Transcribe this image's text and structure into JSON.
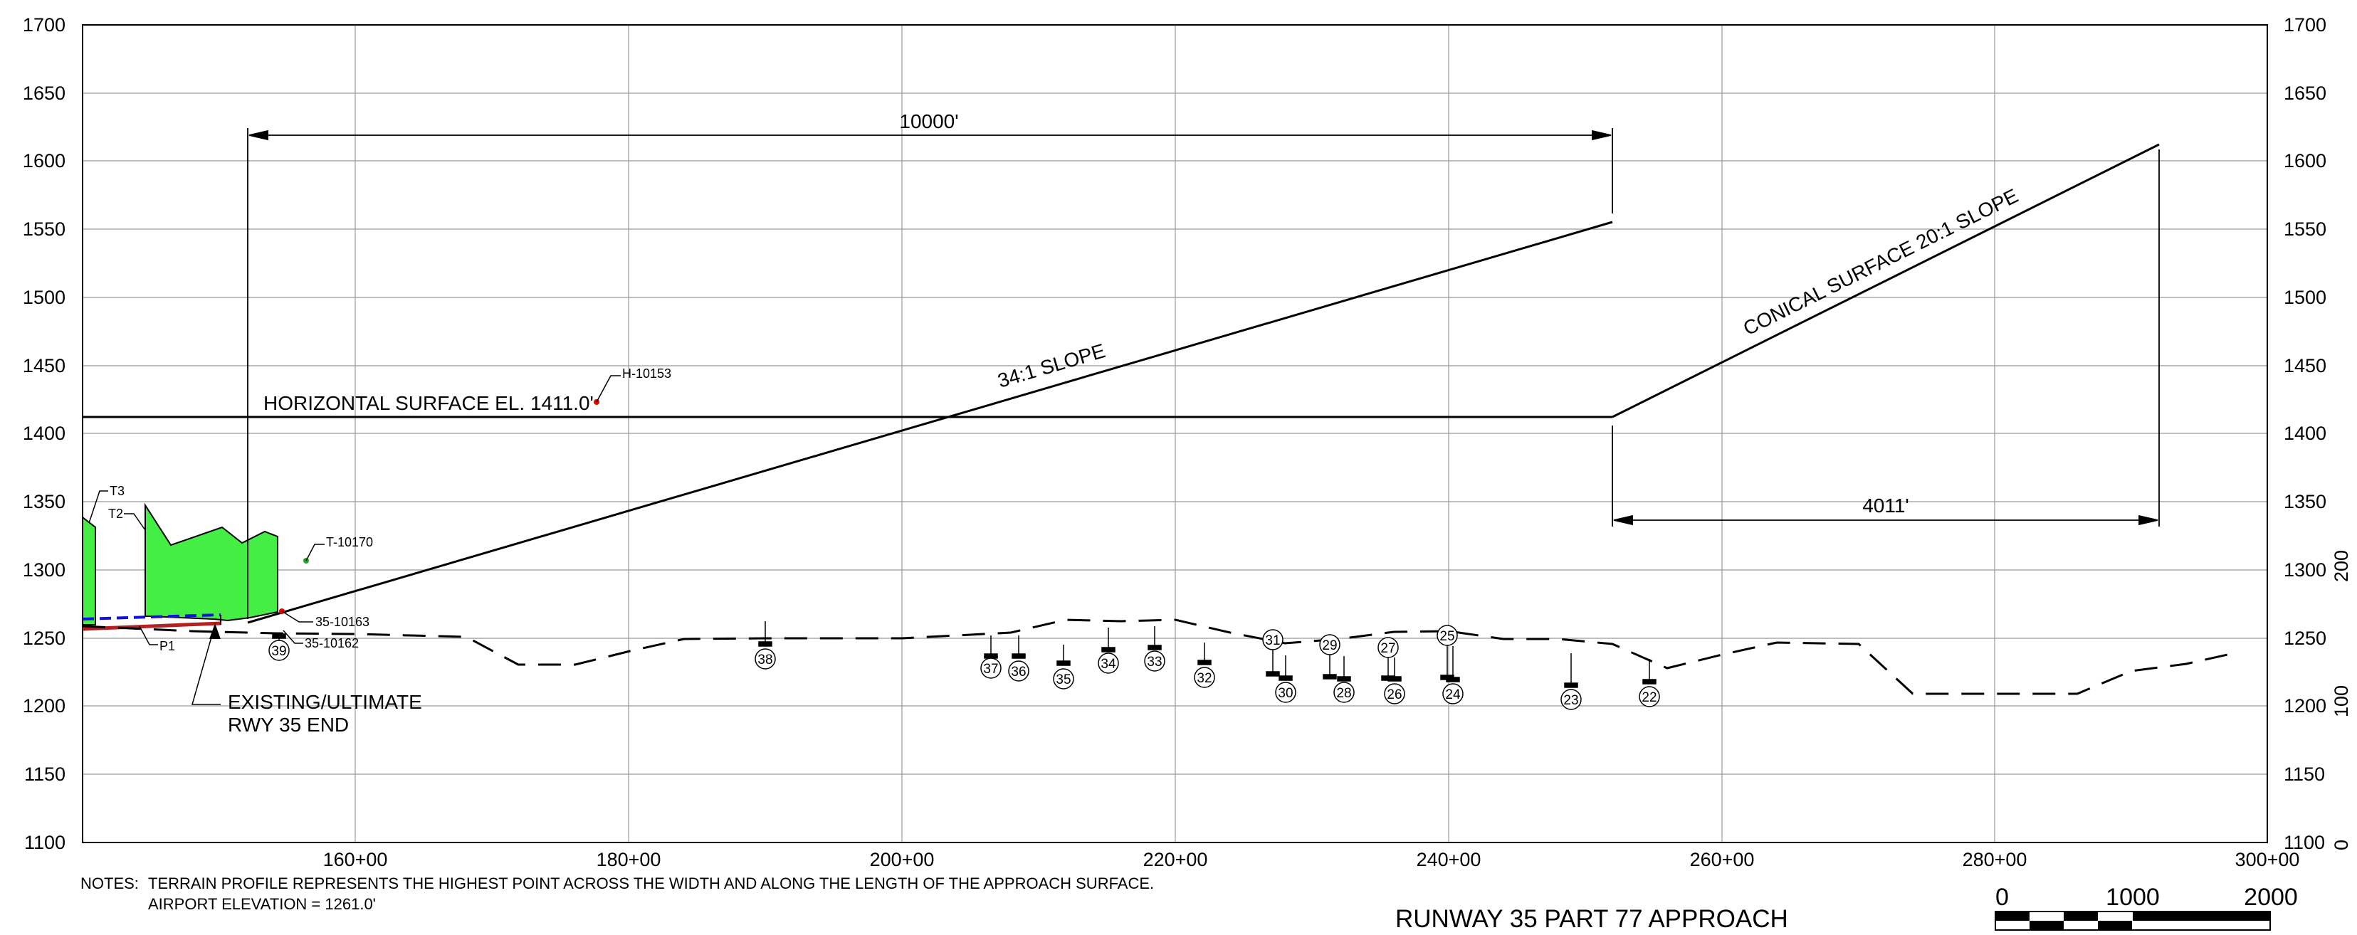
{
  "drawing": {
    "title": "RUNWAY 35 PART 77 APPROACH",
    "notes_prefix": "NOTES:",
    "notes": [
      "TERRAIN PROFILE REPRESENTS THE HIGHEST POINT ACROSS THE WIDTH AND ALONG THE LENGTH OF THE APPROACH SURFACE.",
      "AIRPORT ELEVATION = 1261.0'"
    ]
  },
  "axes": {
    "y_ticks": [
      "1700",
      "1650",
      "1600",
      "1550",
      "1500",
      "1450",
      "1400",
      "1350",
      "1300",
      "1250",
      "1200",
      "1150",
      "1100"
    ],
    "x_ticks": [
      "160+00",
      "180+00",
      "200+00",
      "220+00",
      "240+00",
      "260+00",
      "280+00",
      "300+00"
    ],
    "right_scale": [
      "200",
      "100",
      "0"
    ]
  },
  "surfaces": {
    "horizontal": "HORIZONTAL SURFACE EL. 1411.0'",
    "approach_slope": "34:1 SLOPE",
    "conical": "CONICAL SURFACE 20:1 SLOPE",
    "dim_approach": "10000'",
    "dim_conical": "4011'"
  },
  "callouts": {
    "h": "H-10153",
    "t": "T-10170",
    "t3": "T3",
    "t2": "T2",
    "p1": "P1",
    "o1": "35-10163",
    "o2": "35-10162",
    "rwy_line1": "EXISTING/ULTIMATE",
    "rwy_line2": "RWY 35 END"
  },
  "obstacles": [
    "39",
    "38",
    "37",
    "36",
    "35",
    "34",
    "33",
    "32",
    "31",
    "30",
    "29",
    "28",
    "27",
    "26",
    "25",
    "24",
    "23",
    "22"
  ],
  "scale_bar": {
    "labels": [
      "0",
      "1000",
      "2000"
    ]
  },
  "colors": {
    "terrain_fill": "#44ee44",
    "runway_red": "#b22222",
    "runway_blue": "#1010dd"
  },
  "chart_data": {
    "type": "line",
    "xlabel": "",
    "ylabel": "",
    "xlim": [
      140,
      300
    ],
    "ylim": [
      1100,
      1700
    ],
    "x_units": "stations (x100 ft)",
    "series": [
      {
        "values_xy": [
          [
            152.2,
            1262
          ],
          [
            252,
            1555
          ]
        ]
      },
      {
        "values_xy": [
          [
            140,
            1411
          ],
          [
            252,
            1411
          ]
        ]
      },
      {
        "values_xy": [
          [
            252,
            1411
          ],
          [
            292,
            1611
          ]
        ]
      },
      {
        "values_xy": [
          [
            144,
            1260
          ],
          [
            156,
            1255
          ],
          [
            168,
            1253
          ],
          [
            172,
            1230
          ],
          [
            176,
            1230
          ],
          [
            180,
            1240
          ],
          [
            184,
            1249
          ],
          [
            190,
            1250
          ],
          [
            200,
            1250
          ],
          [
            208,
            1254
          ],
          [
            212,
            1262
          ],
          [
            216,
            1261
          ],
          [
            220,
            1262
          ],
          [
            224,
            1256
          ],
          [
            228,
            1248
          ],
          [
            232,
            1250
          ],
          [
            236,
            1255
          ],
          [
            240,
            1256
          ],
          [
            244,
            1250
          ],
          [
            248,
            1250
          ],
          [
            252,
            1246
          ],
          [
            256,
            1228
          ],
          [
            260,
            1238
          ],
          [
            264,
            1247
          ],
          [
            270,
            1247
          ],
          [
            274,
            1210
          ],
          [
            286,
            1210
          ],
          [
            290,
            1227
          ],
          [
            294,
            1232
          ],
          [
            297,
            1239
          ]
        ]
      }
    ]
  }
}
